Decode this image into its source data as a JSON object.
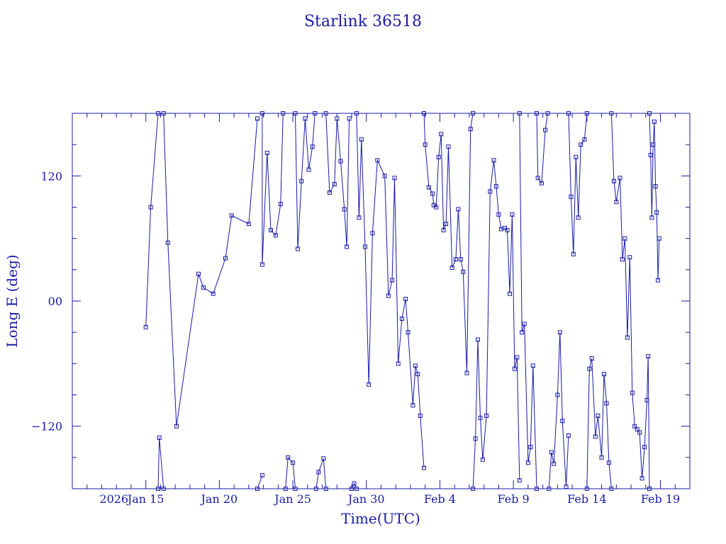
{
  "chart_data": {
    "type": "scatter",
    "title": "Starlink 36518",
    "xlabel": "Time(UTC)",
    "ylabel": "Long E (deg)",
    "x_tick_labels": [
      "2026",
      "Jan 15",
      "Jan 20",
      "Jan 25",
      "Jan 30",
      "Feb 4",
      "Feb 9",
      "Feb 14",
      "Feb 19"
    ],
    "y_tick_labels": [
      "−120",
      "00",
      "120"
    ],
    "xlim": [
      "2026-01-10",
      "2026-02-21"
    ],
    "ylim": [
      -180,
      180
    ],
    "series_color": "#1a1aa6",
    "connected_line": true,
    "marker": "square",
    "series": [
      {
        "points": [
          [
            "2026-01-15 00:00",
            -25
          ],
          [
            "2026-01-15 08:00",
            90
          ],
          [
            "2026-01-15 20:00",
            180
          ],
          null,
          [
            "2026-01-15 20:00",
            -180
          ],
          [
            "2026-01-15 22:00",
            -131
          ],
          [
            "2026-01-16 05:00",
            -180
          ],
          null,
          [
            "2026-01-16 05:00",
            180
          ],
          [
            "2026-01-16 12:00",
            56
          ],
          [
            "2026-01-17 02:00",
            -120
          ],
          [
            "2026-01-18 14:00",
            26
          ],
          [
            "2026-01-18 22:00",
            13
          ],
          [
            "2026-01-19 14:00",
            7
          ],
          [
            "2026-01-20 10:00",
            41
          ],
          [
            "2026-01-20 20:00",
            82
          ],
          [
            "2026-01-22 00:00",
            74
          ],
          [
            "2026-01-22 14:00",
            175
          ],
          null,
          [
            "2026-01-22 14:00",
            -180
          ],
          [
            "2026-01-22 22:00",
            -167
          ],
          null,
          [
            "2026-01-22 22:00",
            180
          ],
          [
            "2026-01-22 22:00",
            35
          ],
          [
            "2026-01-23 06:00",
            142
          ],
          [
            "2026-01-23 12:00",
            68
          ],
          [
            "2026-01-23 20:00",
            63
          ],
          [
            "2026-01-24 04:00",
            93
          ],
          [
            "2026-01-24 08:00",
            180
          ],
          null,
          [
            "2026-01-24 12:00",
            -180
          ],
          [
            "2026-01-24 16:00",
            -150
          ],
          [
            "2026-01-25 00:00",
            -155
          ],
          [
            "2026-01-25 04:00",
            -180
          ],
          null,
          [
            "2026-01-25 04:00",
            180
          ],
          [
            "2026-01-25 08:00",
            50
          ],
          [
            "2026-01-25 14:00",
            115
          ],
          [
            "2026-01-25 20:00",
            175
          ],
          [
            "2026-01-26 02:00",
            126
          ],
          [
            "2026-01-26 08:00",
            148
          ],
          [
            "2026-01-26 12:00",
            180
          ],
          null,
          [
            "2026-01-26 14:00",
            -180
          ],
          [
            "2026-01-26 18:00",
            -164
          ],
          [
            "2026-01-27 02:00",
            -151
          ],
          [
            "2026-01-27 06:00",
            -180
          ],
          null,
          [
            "2026-01-27 06:00",
            180
          ],
          [
            "2026-01-27 12:00",
            104
          ],
          [
            "2026-01-27 20:00",
            112
          ],
          [
            "2026-01-28 00:00",
            175
          ],
          [
            "2026-01-28 06:00",
            134
          ],
          [
            "2026-01-28 12:00",
            88
          ],
          [
            "2026-01-28 16:00",
            52
          ],
          [
            "2026-01-28 20:00",
            175
          ],
          null,
          [
            "2026-01-29 00:00",
            -180
          ],
          [
            "2026-01-29 04:00",
            -175
          ],
          [
            "2026-01-29 08:00",
            -180
          ],
          null,
          [
            "2026-01-29 08:00",
            180
          ],
          [
            "2026-01-29 12:00",
            80
          ],
          [
            "2026-01-29 16:00",
            155
          ],
          [
            "2026-01-29 22:00",
            52
          ],
          [
            "2026-01-30 04:00",
            -80
          ],
          [
            "2026-01-30 10:00",
            65
          ],
          [
            "2026-01-30 18:00",
            135
          ],
          [
            "2026-01-31 06:00",
            120
          ],
          [
            "2026-01-31 12:00",
            5
          ],
          [
            "2026-01-31 18:00",
            20
          ],
          [
            "2026-01-31 22:00",
            118
          ],
          [
            "2026-02-01 04:00",
            -60
          ],
          [
            "2026-02-01 10:00",
            -17
          ],
          [
            "2026-02-01 16:00",
            2
          ],
          [
            "2026-02-01 20:00",
            -30
          ],
          [
            "2026-02-02 04:00",
            -100
          ],
          [
            "2026-02-02 08:00",
            -62
          ],
          [
            "2026-02-02 12:00",
            -70
          ],
          [
            "2026-02-02 16:00",
            -110
          ],
          [
            "2026-02-02 22:00",
            -160
          ],
          null,
          [
            "2026-02-02 22:00",
            180
          ],
          [
            "2026-02-03 00:00",
            150
          ],
          [
            "2026-02-03 06:00",
            109
          ],
          [
            "2026-02-03 12:00",
            103
          ],
          [
            "2026-02-03 14:00",
            92
          ],
          [
            "2026-02-03 18:00",
            90
          ],
          [
            "2026-02-03 22:00",
            138
          ],
          [
            "2026-02-04 02:00",
            160
          ],
          [
            "2026-02-04 06:00",
            68
          ],
          [
            "2026-02-04 10:00",
            74
          ],
          [
            "2026-02-04 14:00",
            148
          ],
          [
            "2026-02-04 20:00",
            32
          ],
          [
            "2026-02-05 02:00",
            40
          ],
          [
            "2026-02-05 06:00",
            88
          ],
          [
            "2026-02-05 10:00",
            40
          ],
          [
            "2026-02-05 14:00",
            28
          ],
          [
            "2026-02-05 20:00",
            -69
          ],
          [
            "2026-02-06 02:00",
            165
          ],
          [
            "2026-02-06 06:00",
            180
          ],
          null,
          [
            "2026-02-06 06:00",
            -180
          ],
          [
            "2026-02-06 10:00",
            -132
          ],
          [
            "2026-02-06 14:00",
            -37
          ],
          [
            "2026-02-06 18:00",
            -112
          ],
          [
            "2026-02-06 22:00",
            -152
          ],
          [
            "2026-02-07 04:00",
            -110
          ],
          [
            "2026-02-07 10:00",
            105
          ],
          [
            "2026-02-07 16:00",
            135
          ],
          [
            "2026-02-07 20:00",
            110
          ],
          [
            "2026-02-08 00:00",
            83
          ],
          [
            "2026-02-08 04:00",
            69
          ],
          [
            "2026-02-08 10:00",
            70
          ],
          [
            "2026-02-08 14:00",
            68
          ],
          [
            "2026-02-08 18:00",
            7
          ],
          [
            "2026-02-08 22:00",
            83
          ],
          [
            "2026-02-09 02:00",
            -65
          ],
          [
            "2026-02-09 06:00",
            -54
          ],
          [
            "2026-02-09 10:00",
            -172
          ],
          null,
          [
            "2026-02-09 10:00",
            180
          ],
          [
            "2026-02-09 14:00",
            -30
          ],
          [
            "2026-02-09 18:00",
            -22
          ],
          [
            "2026-02-10 00:00",
            -155
          ],
          [
            "2026-02-10 04:00",
            -140
          ],
          [
            "2026-02-10 08:00",
            -62
          ],
          [
            "2026-02-10 14:00",
            -180
          ],
          null,
          [
            "2026-02-10 14:00",
            180
          ],
          [
            "2026-02-10 16:00",
            118
          ],
          [
            "2026-02-10 22:00",
            113
          ],
          [
            "2026-02-11 04:00",
            164
          ],
          [
            "2026-02-11 08:00",
            180
          ],
          null,
          [
            "2026-02-11 10:00",
            -180
          ],
          [
            "2026-02-11 14:00",
            -145
          ],
          [
            "2026-02-11 18:00",
            -156
          ],
          [
            "2026-02-12 00:00",
            -90
          ],
          [
            "2026-02-12 04:00",
            -30
          ],
          [
            "2026-02-12 08:00",
            -115
          ],
          [
            "2026-02-12 14:00",
            -178
          ],
          [
            "2026-02-12 18:00",
            -129
          ],
          null,
          [
            "2026-02-12 18:00",
            180
          ],
          [
            "2026-02-12 22:00",
            100
          ],
          [
            "2026-02-13 02:00",
            45
          ],
          [
            "2026-02-13 06:00",
            138
          ],
          [
            "2026-02-13 10:00",
            80
          ],
          [
            "2026-02-13 14:00",
            150
          ],
          [
            "2026-02-13 20:00",
            155
          ],
          [
            "2026-02-14 00:00",
            180
          ],
          null,
          [
            "2026-02-14 00:00",
            -180
          ],
          [
            "2026-02-14 04:00",
            -65
          ],
          [
            "2026-02-14 08:00",
            -55
          ],
          [
            "2026-02-14 14:00",
            -130
          ],
          [
            "2026-02-14 18:00",
            -110
          ],
          [
            "2026-02-15 00:00",
            -150
          ],
          [
            "2026-02-15 04:00",
            -70
          ],
          [
            "2026-02-15 08:00",
            -98
          ],
          [
            "2026-02-15 12:00",
            -155
          ],
          [
            "2026-02-15 16:00",
            -180
          ],
          null,
          [
            "2026-02-15 16:00",
            180
          ],
          [
            "2026-02-15 20:00",
            115
          ],
          [
            "2026-02-16 00:00",
            95
          ],
          [
            "2026-02-16 06:00",
            118
          ],
          [
            "2026-02-16 10:00",
            40
          ],
          [
            "2026-02-16 14:00",
            60
          ],
          [
            "2026-02-16 18:00",
            -35
          ],
          [
            "2026-02-16 22:00",
            42
          ],
          [
            "2026-02-17 02:00",
            -88
          ],
          [
            "2026-02-17 06:00",
            -120
          ],
          [
            "2026-02-17 10:00",
            -123
          ],
          [
            "2026-02-17 14:00",
            -126
          ],
          [
            "2026-02-17 18:00",
            -170
          ],
          [
            "2026-02-17 22:00",
            -140
          ],
          [
            "2026-02-18 02:00",
            -95
          ],
          [
            "2026-02-18 04:00",
            -53
          ],
          [
            "2026-02-18 06:00",
            -180
          ],
          null,
          [
            "2026-02-18 06:00",
            180
          ],
          [
            "2026-02-18 08:00",
            140
          ],
          [
            "2026-02-18 10:00",
            80
          ],
          [
            "2026-02-18 12:00",
            150
          ],
          [
            "2026-02-18 14:00",
            172
          ],
          [
            "2026-02-18 16:00",
            110
          ],
          [
            "2026-02-18 18:00",
            85
          ],
          [
            "2026-02-18 20:00",
            20
          ],
          [
            "2026-02-18 22:00",
            60
          ]
        ]
      }
    ]
  }
}
